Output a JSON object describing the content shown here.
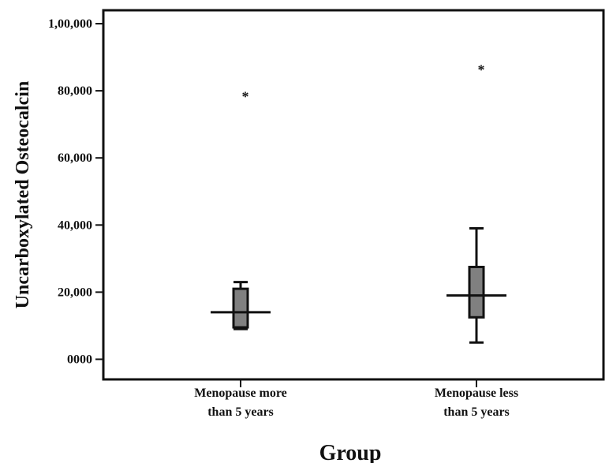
{
  "chart_data": {
    "type": "boxplot",
    "title": "",
    "xlabel": "Group",
    "ylabel": "Uncarboxylated Osteocalcin",
    "ylim": [
      -6000,
      104000
    ],
    "yticks": [
      {
        "value": 0,
        "label": "0000"
      },
      {
        "value": 20000,
        "label": "20,000"
      },
      {
        "value": 40000,
        "label": "40,000"
      },
      {
        "value": 60000,
        "label": "60,000"
      },
      {
        "value": 80000,
        "label": "80,000"
      },
      {
        "value": 100000,
        "label": "1,00,000"
      }
    ],
    "grid": false,
    "legend": "none",
    "categories": [
      [
        "Menopause more",
        "than 5 years"
      ],
      [
        "Menopause less",
        "than 5 years"
      ]
    ],
    "boxes": [
      {
        "whisker_low": 9000,
        "q1": 9500,
        "median": 14000,
        "q3": 21000,
        "whisker_high": 23000,
        "outliers": [
          79000
        ]
      },
      {
        "whisker_low": 5000,
        "q1": 12500,
        "median": 19000,
        "q3": 27500,
        "whisker_high": 39000,
        "outliers": [
          87000
        ]
      }
    ],
    "colors": {
      "box_fill": "#808080",
      "line": "#111111",
      "background": "#ffffff"
    }
  }
}
